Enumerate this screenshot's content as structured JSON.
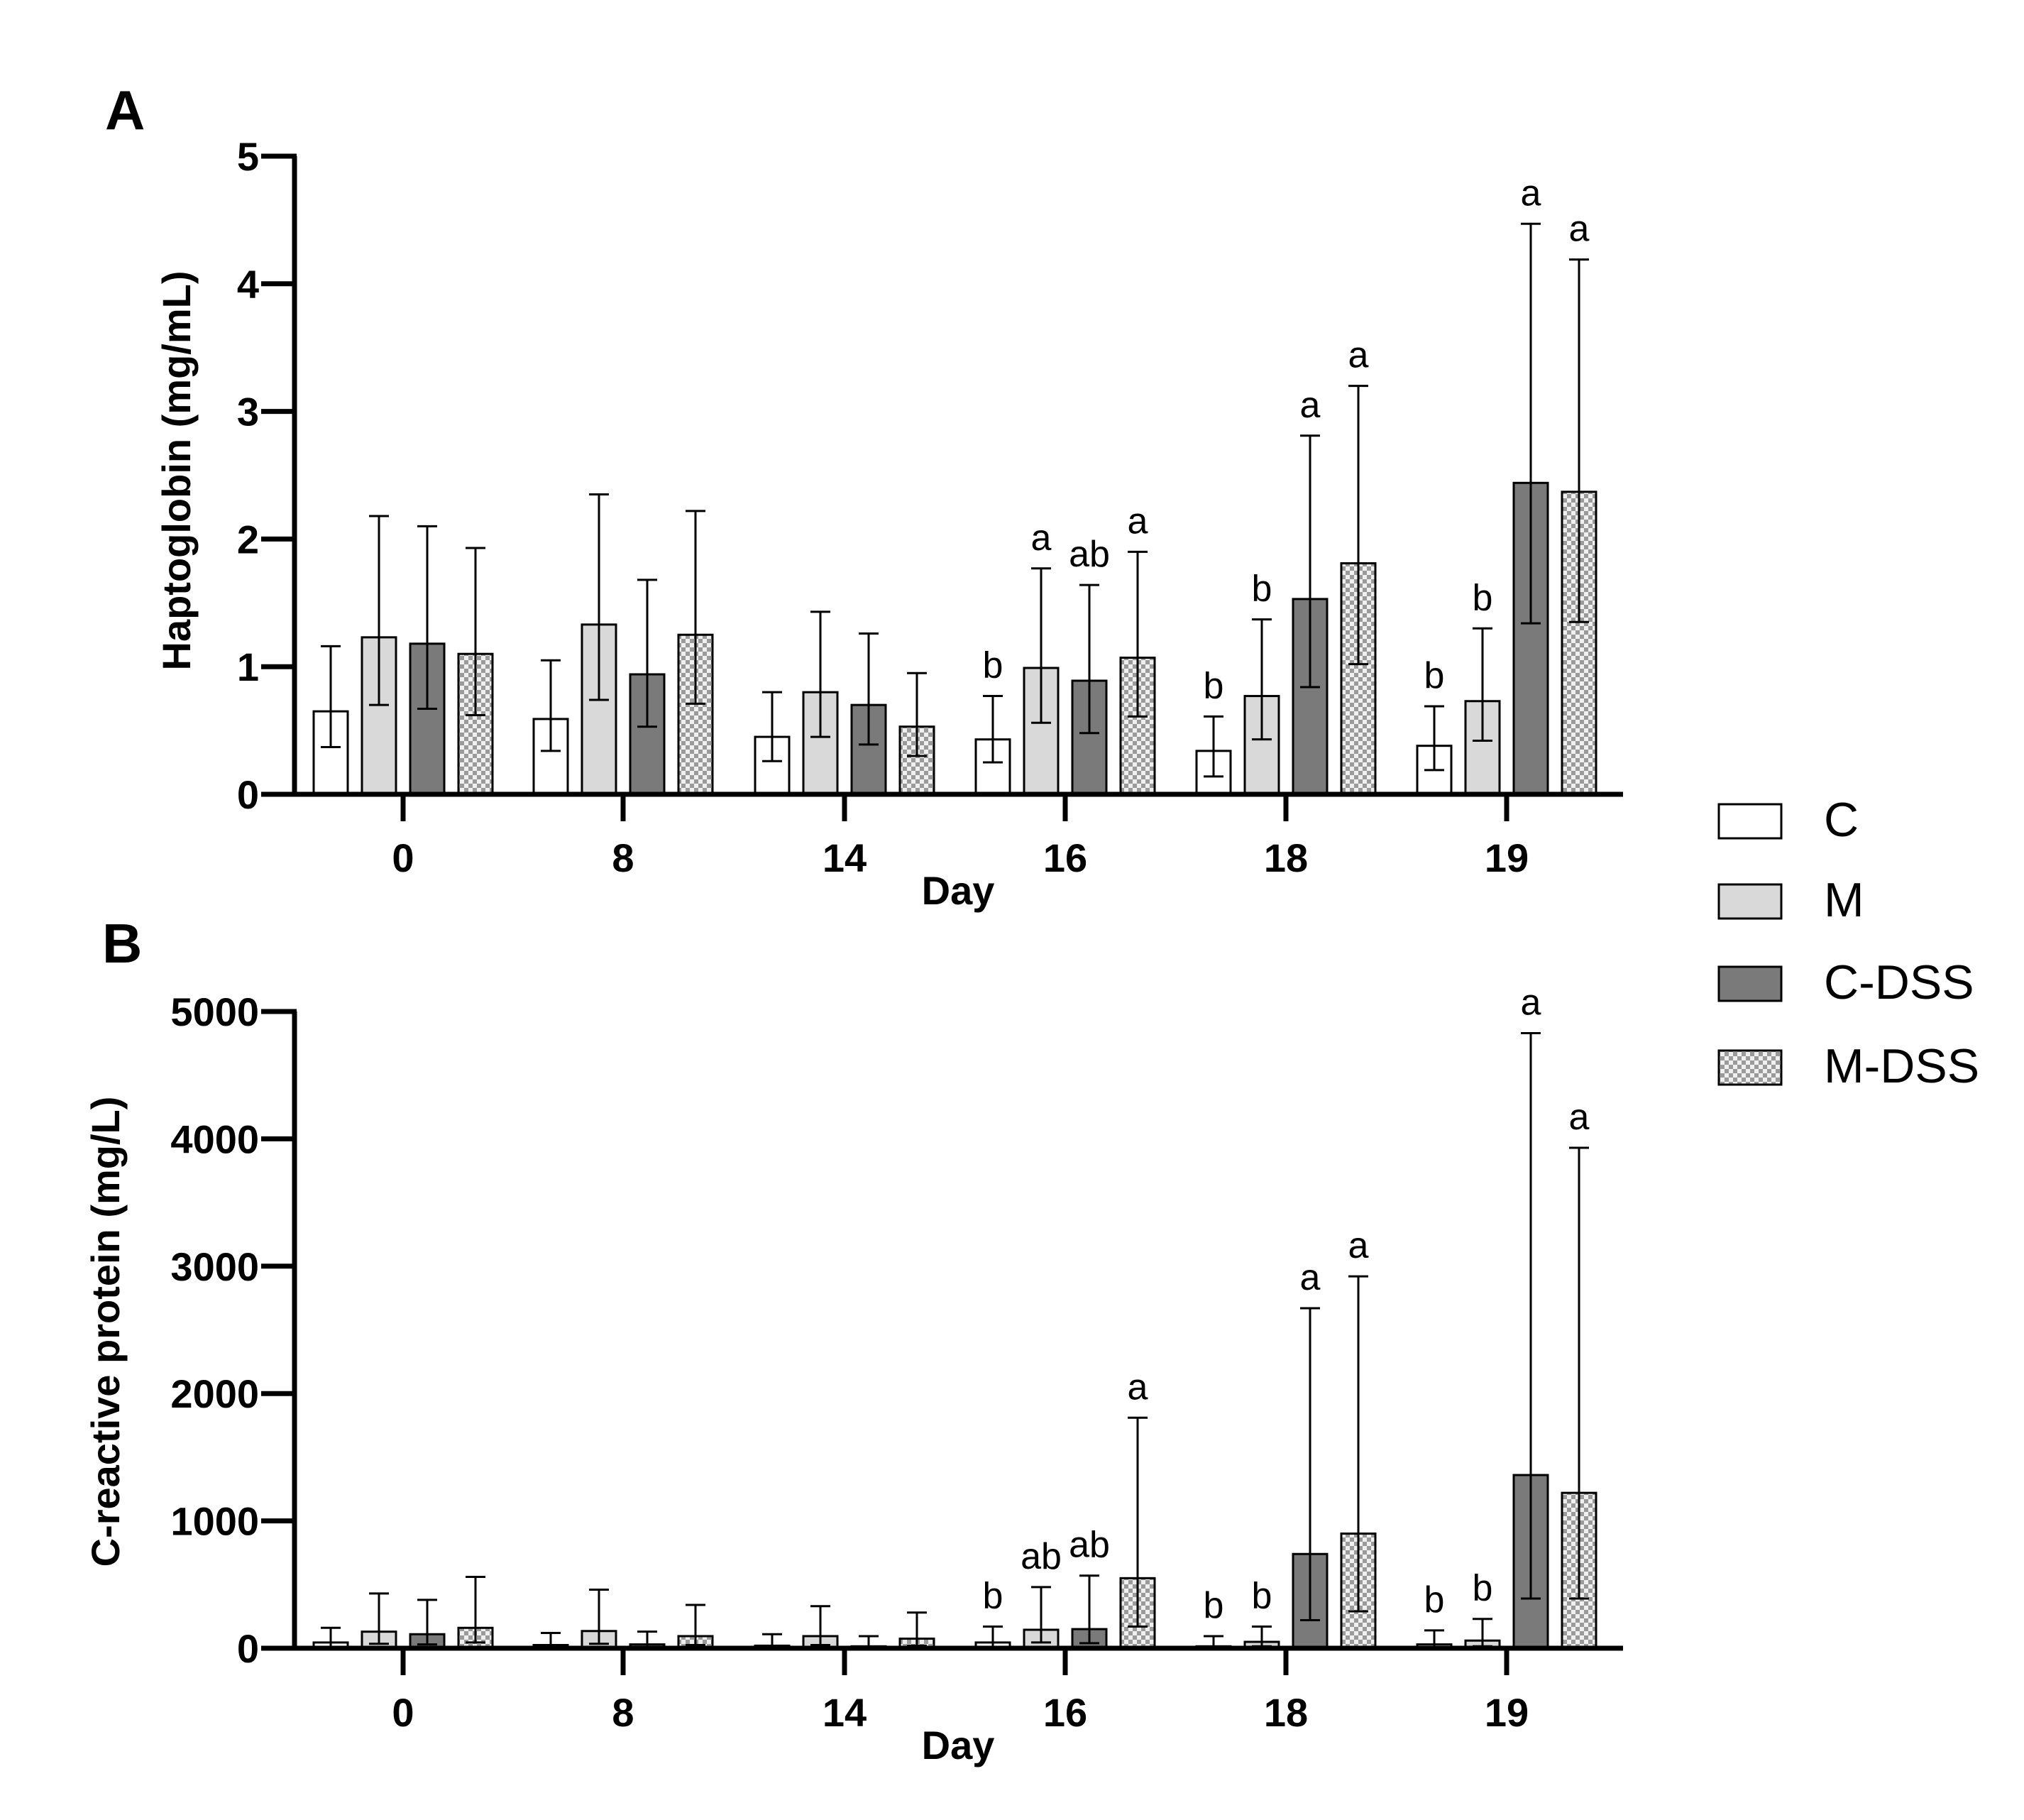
{
  "chart_data": [
    {
      "type": "bar",
      "panel": "A",
      "title": "",
      "xlabel": "Day",
      "ylabel": "Haptoglobin (mg/mL)",
      "ylim": [
        0,
        5
      ],
      "yticks": [
        0,
        1,
        2,
        3,
        4,
        5
      ],
      "grid": false,
      "categories": [
        "0",
        "8",
        "14",
        "16",
        "18",
        "19"
      ],
      "series": [
        {
          "name": "C",
          "values": [
            0.65,
            0.59,
            0.45,
            0.43,
            0.34,
            0.38
          ],
          "err_low": [
            0.37,
            0.34,
            0.26,
            0.25,
            0.14,
            0.19
          ],
          "err_high": [
            1.16,
            1.05,
            0.8,
            0.77,
            0.61,
            0.69
          ]
        },
        {
          "name": "M",
          "values": [
            1.23,
            1.33,
            0.8,
            0.99,
            0.77,
            0.73
          ],
          "err_low": [
            0.7,
            0.74,
            0.45,
            0.56,
            0.43,
            0.42
          ],
          "err_high": [
            2.18,
            2.35,
            1.43,
            1.77,
            1.37,
            1.3
          ]
        },
        {
          "name": "C-DSS",
          "values": [
            1.18,
            0.94,
            0.7,
            0.89,
            1.53,
            2.44
          ],
          "err_low": [
            0.67,
            0.53,
            0.39,
            0.48,
            0.84,
            1.34
          ],
          "err_high": [
            2.1,
            1.68,
            1.26,
            1.64,
            2.81,
            4.47
          ]
        },
        {
          "name": "M-DSS",
          "values": [
            1.1,
            1.25,
            0.53,
            1.07,
            1.81,
            2.37
          ],
          "err_low": [
            0.62,
            0.71,
            0.3,
            0.61,
            1.02,
            1.35
          ],
          "err_high": [
            1.93,
            2.22,
            0.95,
            1.9,
            3.2,
            4.19
          ]
        }
      ],
      "annotations": [
        {
          "category": "16",
          "series": "C",
          "text": "b"
        },
        {
          "category": "16",
          "series": "M",
          "text": "a"
        },
        {
          "category": "16",
          "series": "C-DSS",
          "text": "ab"
        },
        {
          "category": "16",
          "series": "M-DSS",
          "text": "a"
        },
        {
          "category": "18",
          "series": "C",
          "text": "b"
        },
        {
          "category": "18",
          "series": "M",
          "text": "b"
        },
        {
          "category": "18",
          "series": "C-DSS",
          "text": "a"
        },
        {
          "category": "18",
          "series": "M-DSS",
          "text": "a"
        },
        {
          "category": "19",
          "series": "C",
          "text": "b"
        },
        {
          "category": "19",
          "series": "M",
          "text": "b"
        },
        {
          "category": "19",
          "series": "C-DSS",
          "text": "a"
        },
        {
          "category": "19",
          "series": "M-DSS",
          "text": "a"
        }
      ]
    },
    {
      "type": "bar",
      "panel": "B",
      "title": "",
      "xlabel": "Day",
      "ylabel": "C-reactive protein (mg/L)",
      "ylim": [
        0,
        5000
      ],
      "yticks": [
        0,
        1000,
        2000,
        3000,
        4000,
        5000
      ],
      "grid": false,
      "categories": [
        "0",
        "8",
        "14",
        "16",
        "18",
        "19"
      ],
      "series": [
        {
          "name": "C",
          "values": [
            45,
            25,
            20,
            45,
            15,
            30
          ],
          "err_low": [
            10,
            5,
            5,
            10,
            3,
            5
          ],
          "err_high": [
            160,
            120,
            110,
            170,
            95,
            140
          ]
        },
        {
          "name": "M",
          "values": [
            130,
            135,
            95,
            145,
            50,
            60
          ],
          "err_low": [
            35,
            35,
            25,
            45,
            15,
            15
          ],
          "err_high": [
            430,
            460,
            330,
            480,
            170,
            230
          ]
        },
        {
          "name": "C-DSS",
          "values": [
            110,
            30,
            15,
            150,
            740,
            1360
          ],
          "err_low": [
            30,
            5,
            3,
            40,
            220,
            390
          ],
          "err_high": [
            380,
            130,
            95,
            570,
            2670,
            4830
          ]
        },
        {
          "name": "M-DSS",
          "values": [
            160,
            95,
            75,
            550,
            900,
            1220
          ],
          "err_low": [
            45,
            25,
            20,
            170,
            290,
            390
          ],
          "err_high": [
            560,
            340,
            280,
            1810,
            2920,
            3930
          ]
        }
      ],
      "annotations": [
        {
          "category": "16",
          "series": "C",
          "text": "b"
        },
        {
          "category": "16",
          "series": "M",
          "text": "ab"
        },
        {
          "category": "16",
          "series": "C-DSS",
          "text": "ab"
        },
        {
          "category": "16",
          "series": "M-DSS",
          "text": "a"
        },
        {
          "category": "18",
          "series": "C",
          "text": "b"
        },
        {
          "category": "18",
          "series": "M",
          "text": "b"
        },
        {
          "category": "18",
          "series": "C-DSS",
          "text": "a"
        },
        {
          "category": "18",
          "series": "M-DSS",
          "text": "a"
        },
        {
          "category": "19",
          "series": "C",
          "text": "b"
        },
        {
          "category": "19",
          "series": "M",
          "text": "b"
        },
        {
          "category": "19",
          "series": "C-DSS",
          "text": "a"
        },
        {
          "category": "19",
          "series": "M-DSS",
          "text": "a"
        }
      ]
    }
  ],
  "legend": {
    "placement": "right",
    "items": [
      {
        "name": "C",
        "style": "white"
      },
      {
        "name": "M",
        "style": "lightgray"
      },
      {
        "name": "C-DSS",
        "style": "darkgray"
      },
      {
        "name": "M-DSS",
        "style": "checkered"
      }
    ]
  },
  "colors": {
    "C": "#ffffff",
    "M": "#d9d9d9",
    "C-DSS": "#7a7a7a",
    "M-DSS_light": "#eeeeee",
    "M-DSS_dark": "#9a9a9a",
    "stroke": "#000000"
  }
}
